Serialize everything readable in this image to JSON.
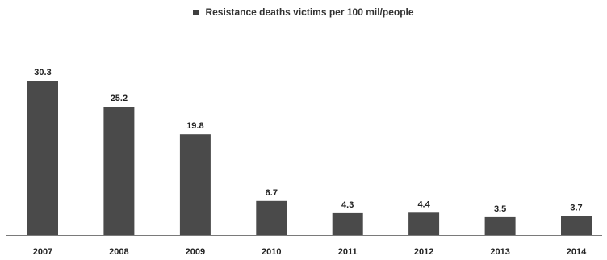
{
  "chart_data": {
    "type": "bar",
    "title": "",
    "xlabel": "",
    "ylabel": "",
    "categories": [
      "2007",
      "2008",
      "2009",
      "2010",
      "2011",
      "2012",
      "2013",
      "2014"
    ],
    "series": [
      {
        "name": "Resistance deaths victims per 100 mil/people",
        "values": [
          30.3,
          25.2,
          19.8,
          6.7,
          4.3,
          4.4,
          3.5,
          3.7
        ],
        "labels": [
          "30.3",
          "25.2",
          "19.8",
          "6.7",
          "4.3",
          "4.4",
          "3.5",
          "3.7"
        ],
        "color": "#4a4a4a"
      }
    ],
    "ylim": [
      0,
      30.3
    ],
    "grid": false,
    "legend_position": "top-center",
    "show_y_axis": false
  }
}
